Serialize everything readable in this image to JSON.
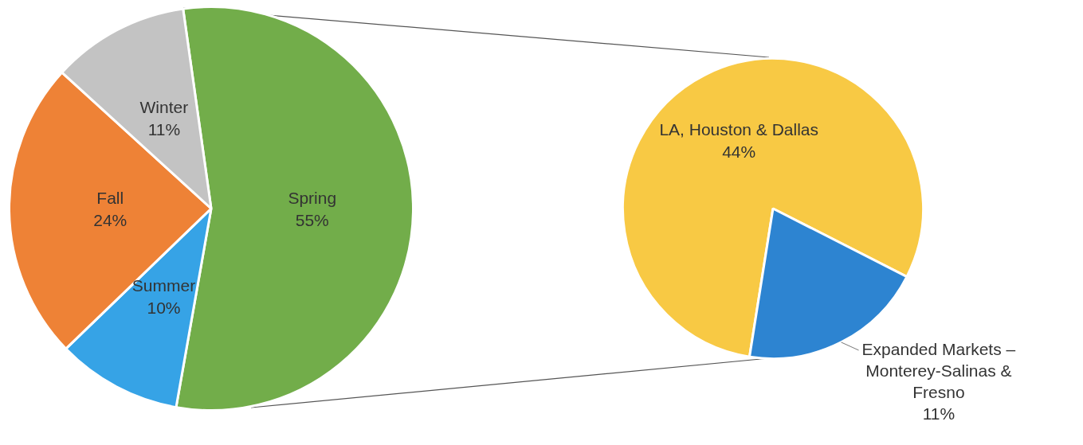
{
  "chart_data": [
    {
      "type": "pie",
      "categories": [
        "Spring",
        "Summer",
        "Fall",
        "Winter"
      ],
      "values": [
        55,
        10,
        24,
        11
      ],
      "value_labels": [
        "55%",
        "10%",
        "24%",
        "11%"
      ],
      "colors": [
        "#72ad4a",
        "#36a3e6",
        "#ee8236",
        "#c3c3c3"
      ]
    },
    {
      "type": "pie",
      "categories": [
        "LA, Houston & Dallas",
        "Expanded Markets – Monterey-Salinas & Fresno"
      ],
      "values": [
        44,
        11
      ],
      "value_labels": [
        "44%",
        "11%"
      ],
      "colors": [
        "#f8c944",
        "#2d84d1"
      ]
    }
  ]
}
